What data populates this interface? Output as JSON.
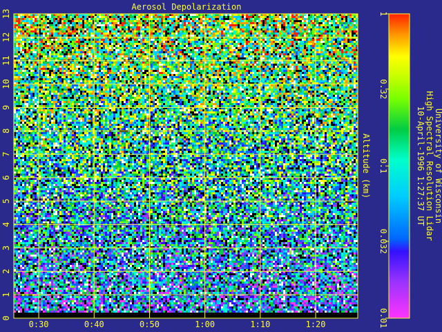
{
  "chart_data": {
    "type": "heatmap",
    "title": "Aerosol Depolarization",
    "ylabel": "Altitude (km)",
    "xlabel": "",
    "x_ticks": [
      "0:30",
      "0:40",
      "0:50",
      "1:00",
      "1:10",
      "1:20"
    ],
    "x_tick_minutes": [
      30,
      40,
      50,
      60,
      70,
      80
    ],
    "xlim_minutes": [
      25.5,
      87.6
    ],
    "y_ticks": [
      0,
      1,
      2,
      3,
      4,
      5,
      6,
      7,
      8,
      9,
      10,
      11,
      12,
      13
    ],
    "ylim": [
      0,
      13
    ],
    "grid": true,
    "colorbar": {
      "scale": "log",
      "range": [
        0.01,
        1
      ],
      "tick_labels": [
        "1",
        "0.32",
        "0.1",
        "0.032",
        "0.01"
      ],
      "tick_values": [
        1,
        0.32,
        0.1,
        0.032,
        0.01
      ]
    },
    "annotation_lines": [
      "University of Wisconsin",
      "High Spectral Resolution Lidar",
      "10-April-1996  1:27:37 UT"
    ]
  },
  "colors": {
    "background": "#2a2a8c",
    "axis_text": "#ffff33",
    "grid": "#ffff33"
  }
}
